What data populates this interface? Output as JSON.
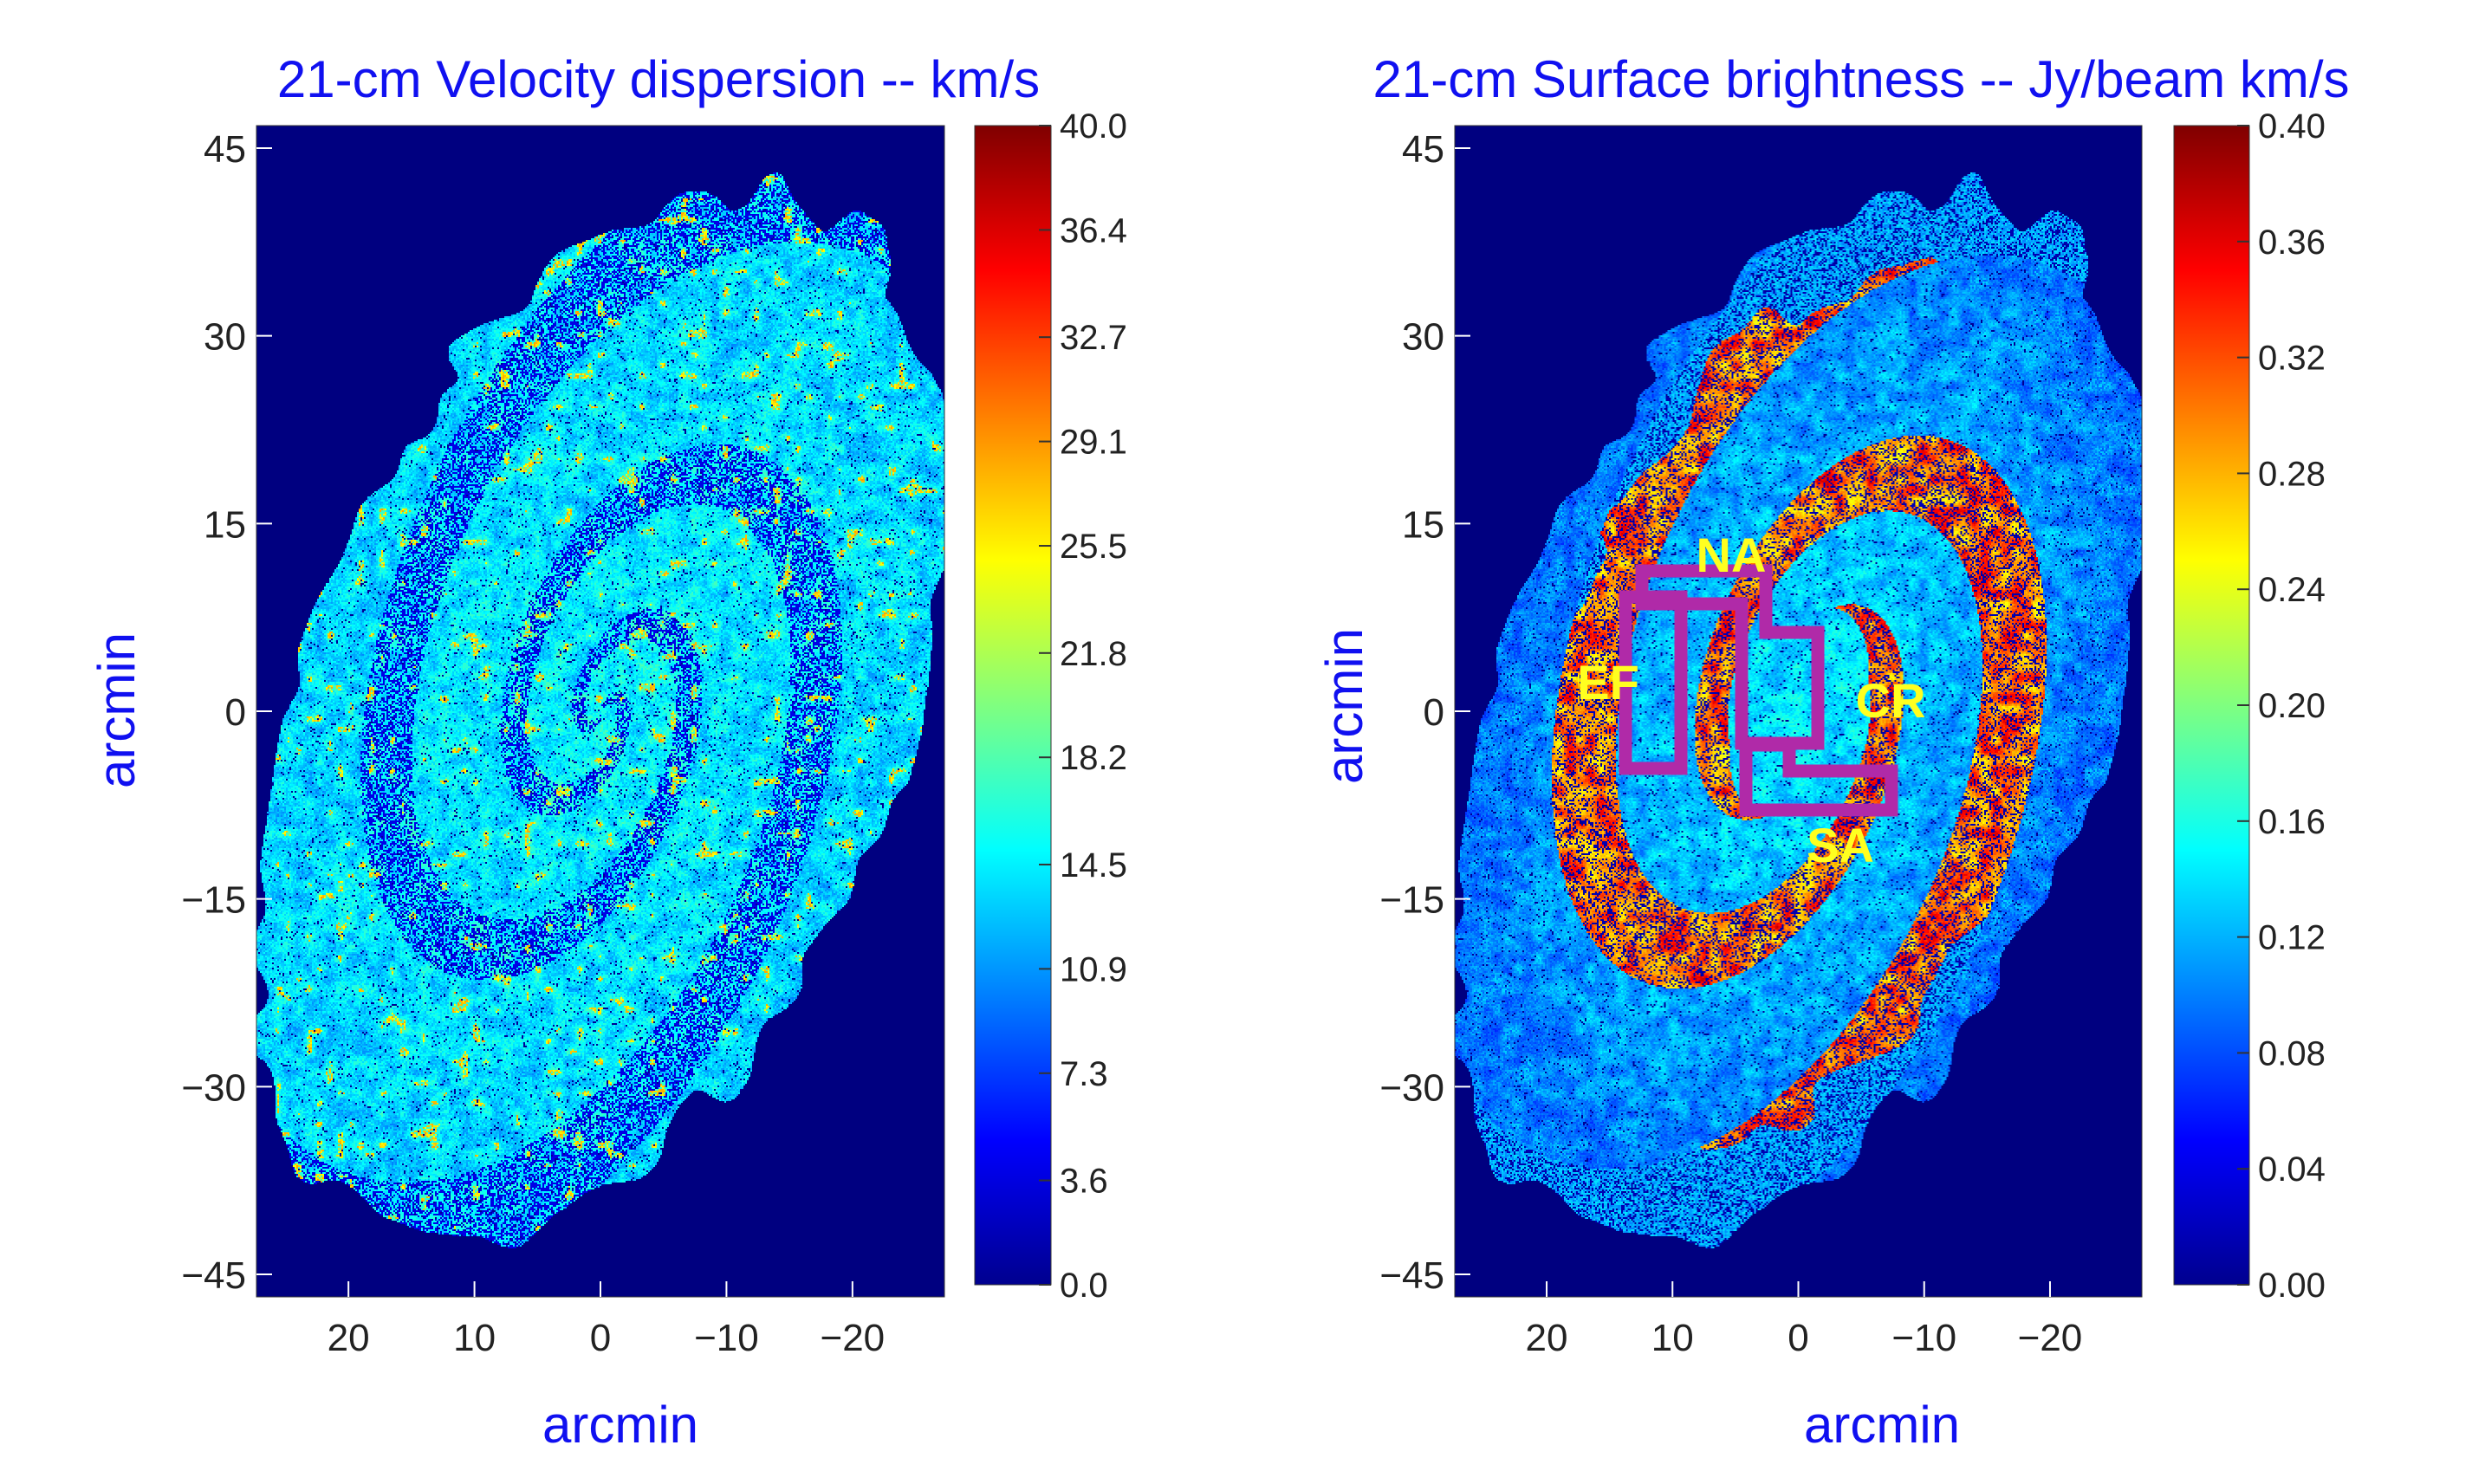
{
  "chart_data": [
    {
      "type": "heatmap",
      "title": "21-cm Velocity dispersion -- km/s",
      "xlabel": "arcmin",
      "ylabel": "arcmin",
      "xlim": [
        27.3,
        -27.3
      ],
      "ylim": [
        -46.8,
        46.8
      ],
      "xticks": [
        20,
        10,
        0,
        -10,
        -20
      ],
      "xtick_labels": [
        "20",
        "10",
        "0",
        "−10",
        "−20"
      ],
      "yticks": [
        45,
        30,
        15,
        0,
        -15,
        -30,
        -45
      ],
      "ytick_labels": [
        "45",
        "30",
        "15",
        "0",
        "−15",
        "−30",
        "−45"
      ],
      "colormap": "jet",
      "colorbar": {
        "range": [
          0,
          40
        ],
        "ticks": [
          0,
          3.6,
          7.3,
          10.9,
          14.5,
          18.2,
          21.8,
          25.5,
          29.1,
          32.7,
          36.4,
          40
        ],
        "tick_labels": [
          "0.0",
          "3.6",
          "7.3",
          "10.9",
          "14.5",
          "18.2",
          "21.8",
          "25.5",
          "29.1",
          "32.7",
          "36.4",
          "40.0"
        ]
      }
    },
    {
      "type": "heatmap",
      "title": "21-cm Surface brightness -- Jy/beam km/s",
      "xlabel": "arcmin",
      "ylabel": "arcmin",
      "xlim": [
        27.3,
        -27.3
      ],
      "ylim": [
        -46.8,
        46.8
      ],
      "xticks": [
        20,
        10,
        0,
        -10,
        -20
      ],
      "xtick_labels": [
        "20",
        "10",
        "0",
        "−10",
        "−20"
      ],
      "yticks": [
        45,
        30,
        15,
        0,
        -15,
        -30,
        -45
      ],
      "ytick_labels": [
        "45",
        "30",
        "15",
        "0",
        "−15",
        "−30",
        "−45"
      ],
      "colormap": "jet",
      "colorbar": {
        "range": [
          0,
          0.4
        ],
        "ticks": [
          0,
          0.04,
          0.08,
          0.12,
          0.16,
          0.2,
          0.24,
          0.28,
          0.32,
          0.36,
          0.4
        ],
        "tick_labels": [
          "0.00",
          "0.04",
          "0.08",
          "0.12",
          "0.16",
          "0.20",
          "0.24",
          "0.28",
          "0.32",
          "0.36",
          "0.40"
        ]
      },
      "annotations": [
        {
          "label": "NA",
          "color": "#ffff20"
        },
        {
          "label": "EF",
          "color": "#ffff20"
        },
        {
          "label": "CR",
          "color": "#ffff20"
        },
        {
          "label": "SA",
          "color": "#ffff20"
        }
      ],
      "region_color": "#b02aa8"
    }
  ]
}
